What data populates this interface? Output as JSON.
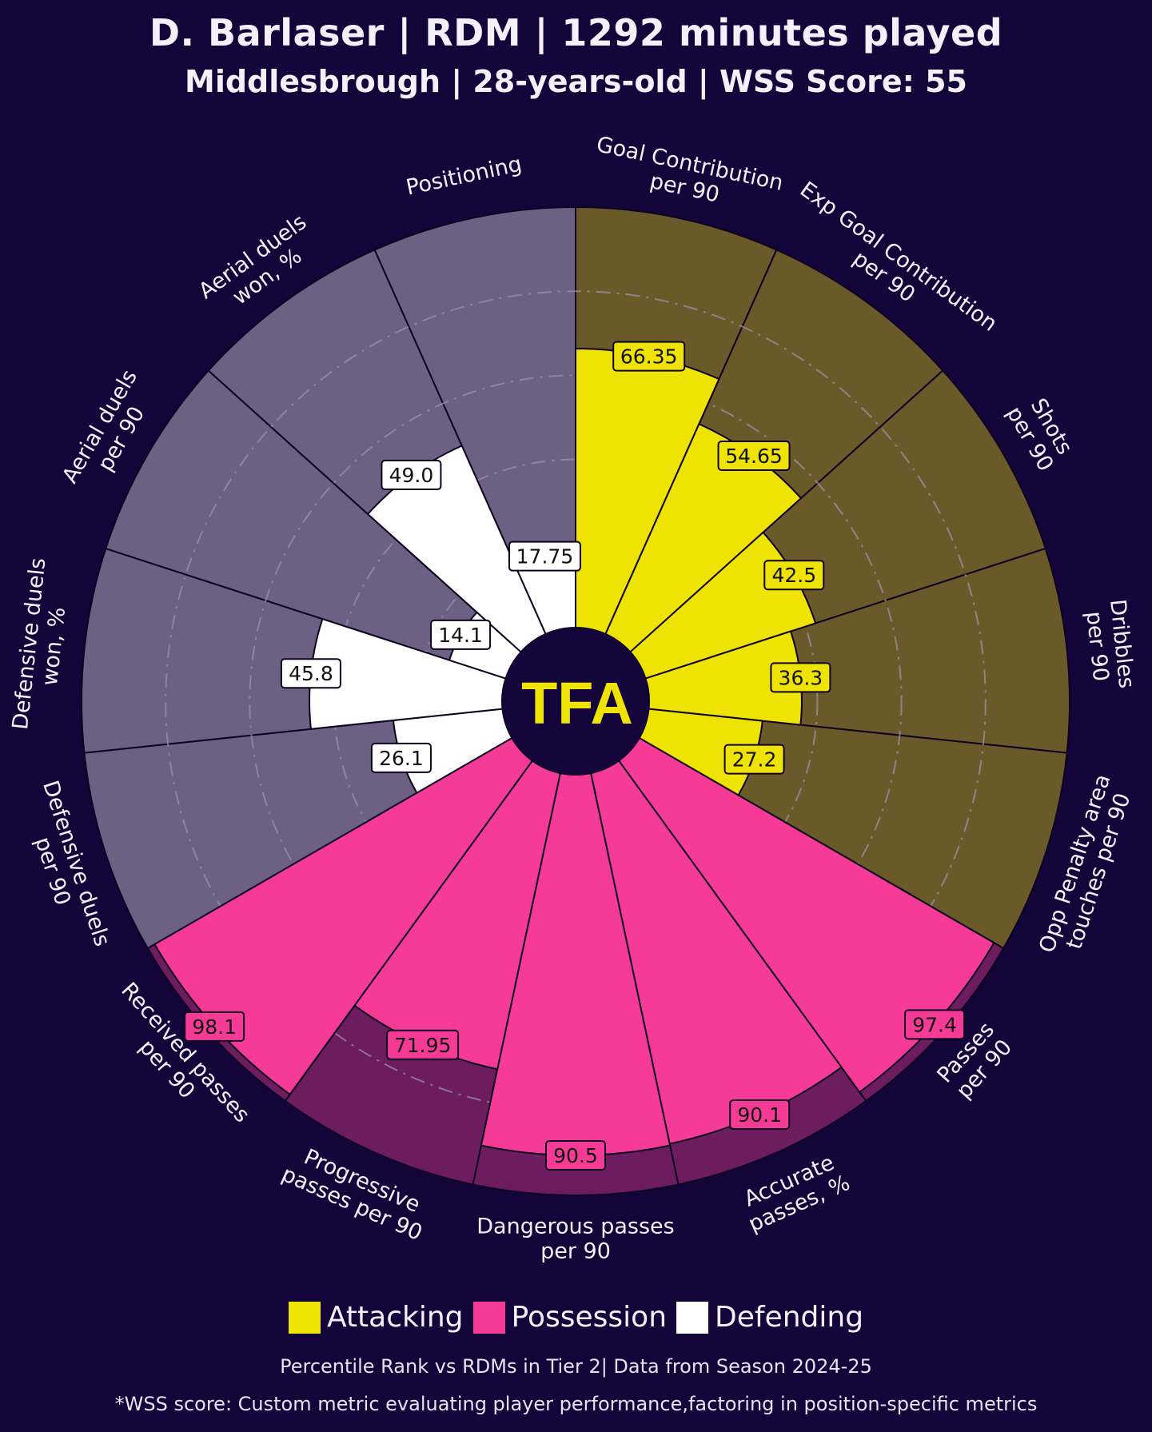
{
  "title": "D. Barlaser | RDM | 1292 minutes played",
  "subtitle": "Middlesbrough | 28-years-old | WSS Score: 55",
  "logo_text": "TFA",
  "legend": {
    "attacking": "Attacking",
    "possession": "Possession",
    "defending": "Defending"
  },
  "footnote": "Percentile Rank vs RDMs in Tier 2| Data from Season 2024-25",
  "disclaimer": "*WSS score: Custom metric evaluating player performance,factoring in position-specific metrics",
  "colors": {
    "background": "#13043a",
    "attacking": "#efe304",
    "attacking_bg": "#6b5a29",
    "possession": "#f63b97",
    "possession_bg": "#6c1c5f",
    "defending": "#ffffff",
    "defending_bg": "#6d6082"
  },
  "chart_data": {
    "type": "polar-bar",
    "title": "D. Barlaser | RDM | 1292 minutes played",
    "range": [
      0,
      100
    ],
    "rings": [
      20,
      40,
      60,
      80
    ],
    "categories": [
      "Goal Contribution\nper 90",
      "Exp Goal Contribution\nper 90",
      "Shots\nper 90",
      "Dribbles\nper 90",
      "Opp Penalty area\ntouches per 90",
      "Passes\nper 90",
      "Accurate\npasses, %",
      "Dangerous passes\nper 90",
      "Progressive\npasses per 90",
      "Received passes\nper 90",
      "Defensive duels\nper 90",
      "Defensive duels\nwon, %",
      "Aerial duels\nper 90",
      "Aerial duels\nwon, %",
      "Positioning"
    ],
    "values": [
      66.35,
      54.65,
      42.5,
      36.3,
      27.2,
      97.4,
      90.1,
      90.5,
      71.95,
      98.1,
      26.1,
      45.8,
      14.1,
      49.0,
      17.75
    ],
    "value_labels": [
      "66.35",
      "54.65",
      "42.5",
      "36.3",
      "27.2",
      "97.4",
      "90.1",
      "90.5",
      "71.95",
      "98.1",
      "26.1",
      "45.8",
      "14.1",
      "49.0",
      "17.75"
    ],
    "groups": [
      "Attacking",
      "Attacking",
      "Attacking",
      "Attacking",
      "Attacking",
      "Possession",
      "Possession",
      "Possession",
      "Possession",
      "Possession",
      "Defending",
      "Defending",
      "Defending",
      "Defending",
      "Defending"
    ]
  }
}
